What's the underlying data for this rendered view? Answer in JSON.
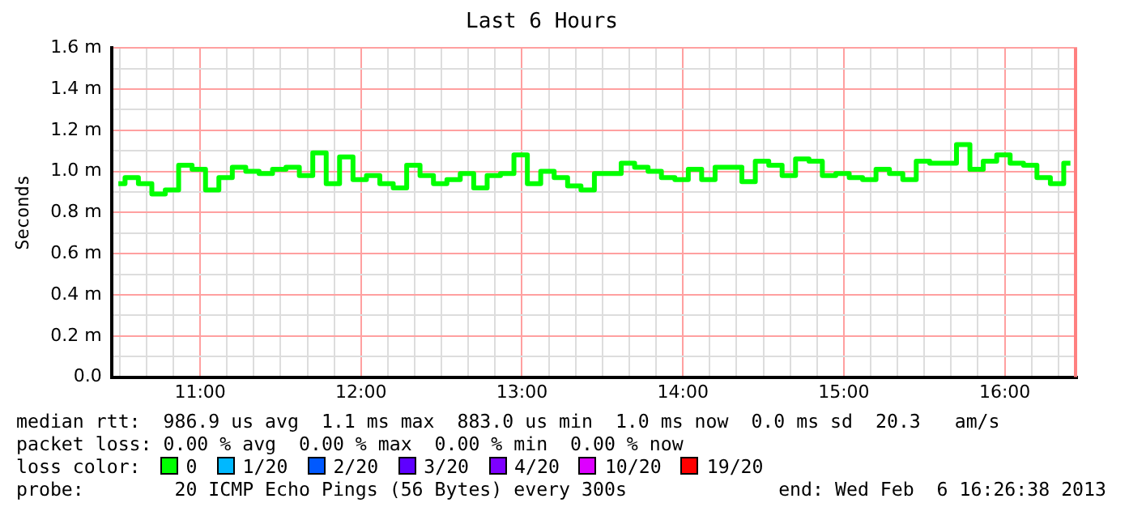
{
  "chart_data": {
    "type": "step",
    "title": "Last 6 Hours",
    "ylabel": "Seconds",
    "x": [
      10.492,
      10.575,
      10.658,
      10.742,
      10.825,
      10.908,
      10.992,
      11.075,
      11.158,
      11.242,
      11.325,
      11.408,
      11.492,
      11.575,
      11.658,
      11.742,
      11.825,
      11.908,
      11.992,
      12.075,
      12.158,
      12.242,
      12.325,
      12.408,
      12.492,
      12.575,
      12.658,
      12.742,
      12.825,
      12.908,
      12.992,
      13.075,
      13.158,
      13.242,
      13.325,
      13.408,
      13.492,
      13.575,
      13.658,
      13.742,
      13.825,
      13.908,
      13.992,
      14.075,
      14.158,
      14.242,
      14.325,
      14.408,
      14.492,
      14.575,
      14.658,
      14.742,
      14.825,
      14.908,
      14.992,
      15.075,
      15.158,
      15.242,
      15.325,
      15.408,
      15.492,
      15.575,
      15.658,
      15.742,
      15.825,
      15.908,
      15.992,
      16.075,
      16.158,
      16.242,
      16.325,
      16.408
    ],
    "series": [
      {
        "color": "#00ff00",
        "values": [
          0.94,
          0.97,
          0.94,
          0.89,
          0.91,
          1.03,
          1.01,
          0.91,
          0.97,
          1.02,
          1.0,
          0.99,
          1.01,
          1.02,
          0.98,
          1.09,
          0.94,
          1.07,
          0.96,
          0.98,
          0.94,
          0.92,
          1.03,
          0.98,
          0.94,
          0.96,
          0.99,
          0.92,
          0.98,
          0.99,
          1.08,
          0.94,
          1.0,
          0.97,
          0.93,
          0.91,
          0.99,
          0.99,
          1.04,
          1.02,
          1.0,
          0.97,
          0.96,
          1.01,
          0.96,
          1.02,
          1.02,
          0.95,
          1.05,
          1.03,
          0.98,
          1.06,
          1.05,
          0.98,
          0.99,
          0.97,
          0.96,
          1.01,
          0.99,
          0.96,
          1.05,
          1.04,
          1.04,
          1.13,
          1.01,
          1.05,
          1.08,
          1.04,
          1.03,
          0.97,
          0.94,
          1.04
        ]
      }
    ],
    "xlim": [
      10.45,
      16.45
    ],
    "xticks": [
      {
        "value": 10.5,
        "label": null
      },
      {
        "value": 10.667,
        "label": null
      },
      {
        "value": 10.833,
        "label": null
      },
      {
        "value": 11,
        "label": "11:00"
      },
      {
        "value": 11.167,
        "label": null
      },
      {
        "value": 11.333,
        "label": null
      },
      {
        "value": 11.5,
        "label": null
      },
      {
        "value": 11.667,
        "label": null
      },
      {
        "value": 11.833,
        "label": null
      },
      {
        "value": 12,
        "label": "12:00"
      },
      {
        "value": 12.167,
        "label": null
      },
      {
        "value": 12.333,
        "label": null
      },
      {
        "value": 12.5,
        "label": null
      },
      {
        "value": 12.667,
        "label": null
      },
      {
        "value": 12.833,
        "label": null
      },
      {
        "value": 13,
        "label": "13:00"
      },
      {
        "value": 13.167,
        "label": null
      },
      {
        "value": 13.333,
        "label": null
      },
      {
        "value": 13.5,
        "label": null
      },
      {
        "value": 13.667,
        "label": null
      },
      {
        "value": 13.833,
        "label": null
      },
      {
        "value": 14,
        "label": "14:00"
      },
      {
        "value": 14.167,
        "label": null
      },
      {
        "value": 14.333,
        "label": null
      },
      {
        "value": 14.5,
        "label": null
      },
      {
        "value": 14.667,
        "label": null
      },
      {
        "value": 14.833,
        "label": null
      },
      {
        "value": 15,
        "label": "15:00"
      },
      {
        "value": 15.167,
        "label": null
      },
      {
        "value": 15.333,
        "label": null
      },
      {
        "value": 15.5,
        "label": null
      },
      {
        "value": 15.667,
        "label": null
      },
      {
        "value": 15.833,
        "label": null
      },
      {
        "value": 16,
        "label": "16:00"
      },
      {
        "value": 16.167,
        "label": null
      },
      {
        "value": 16.333,
        "label": null
      }
    ],
    "ylim": [
      0,
      1.6
    ],
    "yticks": [
      {
        "value": 0,
        "label": "0.0"
      },
      {
        "value": 0.1,
        "label": null
      },
      {
        "value": 0.2,
        "label": "0.2 m"
      },
      {
        "value": 0.3,
        "label": null
      },
      {
        "value": 0.4,
        "label": "0.4 m"
      },
      {
        "value": 0.5,
        "label": null
      },
      {
        "value": 0.6,
        "label": "0.6 m"
      },
      {
        "value": 0.7,
        "label": null
      },
      {
        "value": 0.8,
        "label": "0.8 m"
      },
      {
        "value": 0.9,
        "label": null
      },
      {
        "value": 1.0,
        "label": "1.0 m"
      },
      {
        "value": 1.1,
        "label": null
      },
      {
        "value": 1.2,
        "label": "1.2 m"
      },
      {
        "value": 1.3,
        "label": null
      },
      {
        "value": 1.4,
        "label": "1.4 m"
      },
      {
        "value": 1.5,
        "label": null
      },
      {
        "value": 1.6,
        "label": "1.6 m"
      }
    ],
    "grid": true,
    "legend": false,
    "marker": "none",
    "line_style": "solid",
    "ref_lines": [
      {
        "axis": "x",
        "value": 16.44,
        "color": "#ff8080"
      }
    ],
    "annotations": [
      "median rtt:  986.9 us avg  1.1 ms max  883.0 us min  1.0 ms now  0.0 ms sd  20.3   am/s",
      "packet loss: 0.00 % avg  0.00 % max  0.00 % min  0.00 % now",
      "loss color:",
      "0",
      "1/20",
      "2/20",
      "3/20",
      "4/20",
      "10/20",
      "19/20",
      "probe:        20 ICMP Echo Pings (56 Bytes) every 300s",
      "end: Wed Feb  6 16:26:38 2013"
    ]
  }
}
